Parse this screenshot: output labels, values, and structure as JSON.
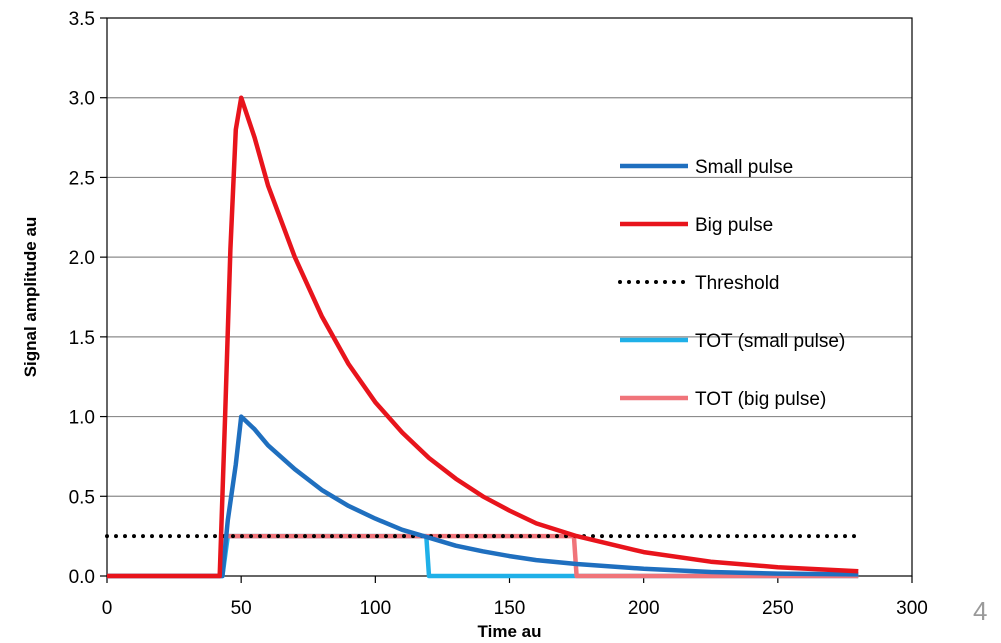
{
  "page_number": "4",
  "chart_data": {
    "type": "line",
    "xlabel": "Time au",
    "ylabel": "Signal amplitude au",
    "xlim": [
      0,
      300
    ],
    "ylim": [
      0,
      3.5
    ],
    "x_ticks": [
      0,
      50,
      100,
      150,
      200,
      250,
      300
    ],
    "y_ticks": [
      0.0,
      0.5,
      1.0,
      1.5,
      2.0,
      2.5,
      3.0,
      3.5
    ],
    "y_tick_labels": [
      "0.0",
      "0.5",
      "1.0",
      "1.5",
      "2.0",
      "2.5",
      "3.0",
      "3.5"
    ],
    "x_tick_labels": [
      "0",
      "50",
      "100",
      "150",
      "200",
      "250",
      "300"
    ],
    "grid": "horizontal",
    "legend_position": "right",
    "series": [
      {
        "name": "Small pulse",
        "color": "#1f6fbf",
        "style": "solid",
        "x": [
          0,
          43,
          45,
          48,
          50,
          55,
          60,
          70,
          80,
          90,
          100,
          110,
          120,
          130,
          140,
          150,
          160,
          175,
          200,
          225,
          250,
          280
        ],
        "y": [
          0,
          0,
          0.35,
          0.7,
          1.0,
          0.92,
          0.82,
          0.67,
          0.54,
          0.44,
          0.36,
          0.29,
          0.24,
          0.19,
          0.155,
          0.125,
          0.1,
          0.075,
          0.045,
          0.025,
          0.015,
          0.01
        ]
      },
      {
        "name": "Big pulse",
        "color": "#e8141c",
        "style": "solid",
        "x": [
          0,
          42,
          44,
          46,
          48,
          50,
          55,
          60,
          70,
          80,
          90,
          100,
          110,
          120,
          130,
          140,
          150,
          160,
          175,
          200,
          225,
          250,
          280
        ],
        "y": [
          0,
          0,
          1.0,
          2.05,
          2.8,
          3.0,
          2.75,
          2.45,
          2.0,
          1.63,
          1.33,
          1.09,
          0.9,
          0.74,
          0.61,
          0.5,
          0.41,
          0.33,
          0.25,
          0.15,
          0.09,
          0.055,
          0.03
        ]
      },
      {
        "name": "Threshold",
        "color": "#000000",
        "style": "dotted",
        "x": [
          0,
          280
        ],
        "y": [
          0.25,
          0.25
        ]
      },
      {
        "name": "TOT (small pulse)",
        "color": "#1fb0e8",
        "style": "solid",
        "x": [
          0,
          43,
          45,
          119,
          120,
          280
        ],
        "y": [
          0,
          0,
          0.25,
          0.25,
          0,
          0
        ]
      },
      {
        "name": "TOT (big pulse)",
        "color": "#f0747a",
        "style": "solid",
        "x": [
          0,
          42,
          44,
          174,
          175,
          280
        ],
        "y": [
          0,
          0,
          0.25,
          0.25,
          0,
          0
        ]
      }
    ]
  }
}
